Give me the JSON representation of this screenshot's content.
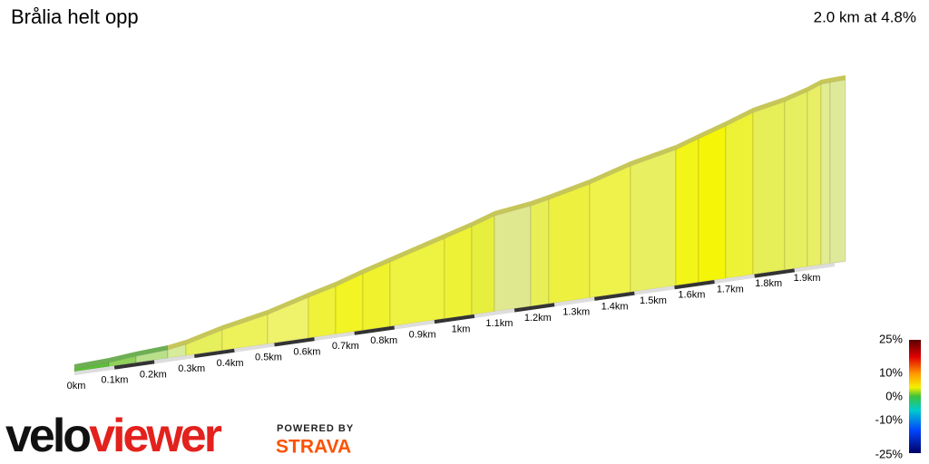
{
  "chart_data": {
    "type": "profile",
    "title": "Brålia helt opp",
    "subtitle": "2.0 km at 4.8%",
    "categories": [
      "0km",
      "0.1km",
      "0.2km",
      "0.3km",
      "0.4km",
      "0.5km",
      "0.6km",
      "0.7km",
      "0.8km",
      "0.9km",
      "1km",
      "1.1km",
      "1.2km",
      "1.3km",
      "1.4km",
      "1.5km",
      "1.6km",
      "1.7km",
      "1.8km",
      "1.9km"
    ],
    "legend": {
      "labels": [
        "25%",
        "10%",
        "0%",
        "-10%",
        "-25%"
      ]
    }
  },
  "branding": {
    "logo_left": "velo",
    "logo_right": "viewer",
    "powered": "POWERED BY",
    "strava": "STRAVA"
  }
}
